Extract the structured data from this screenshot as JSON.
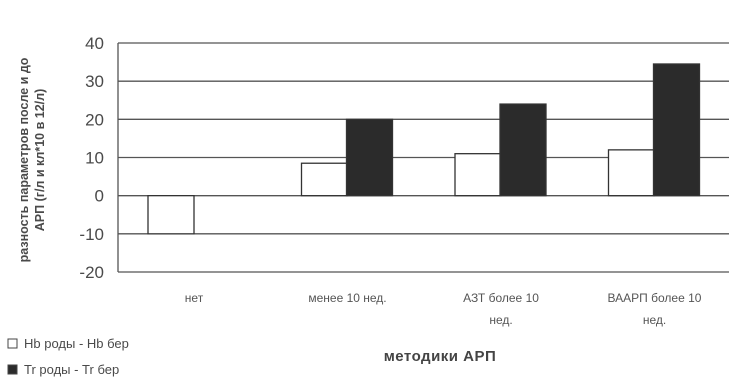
{
  "chart_data": {
    "type": "bar",
    "ylabel": "разность параметров после и до АРП (г/л и кл*10 в 12/л)",
    "xlabel": "методики АРП",
    "ylim": [
      -20,
      40
    ],
    "yticks": [
      40,
      30,
      20,
      10,
      0,
      -10,
      -20
    ],
    "grid": true,
    "legend_position": "bottom-left",
    "categories": [
      [
        "нет"
      ],
      [
        "менее 10 нед."
      ],
      [
        "АЗТ более 10",
        "нед."
      ],
      [
        "ВААРП более 10",
        "нед."
      ]
    ],
    "series": [
      {
        "name": "Hb роды - Hb бер",
        "color": "#ffffff",
        "values": [
          -10,
          8.5,
          11,
          12
        ]
      },
      {
        "name": "Tr роды - Tr бер",
        "color": "#2b2b2b",
        "values": [
          0,
          20,
          24,
          34.5
        ]
      }
    ]
  }
}
